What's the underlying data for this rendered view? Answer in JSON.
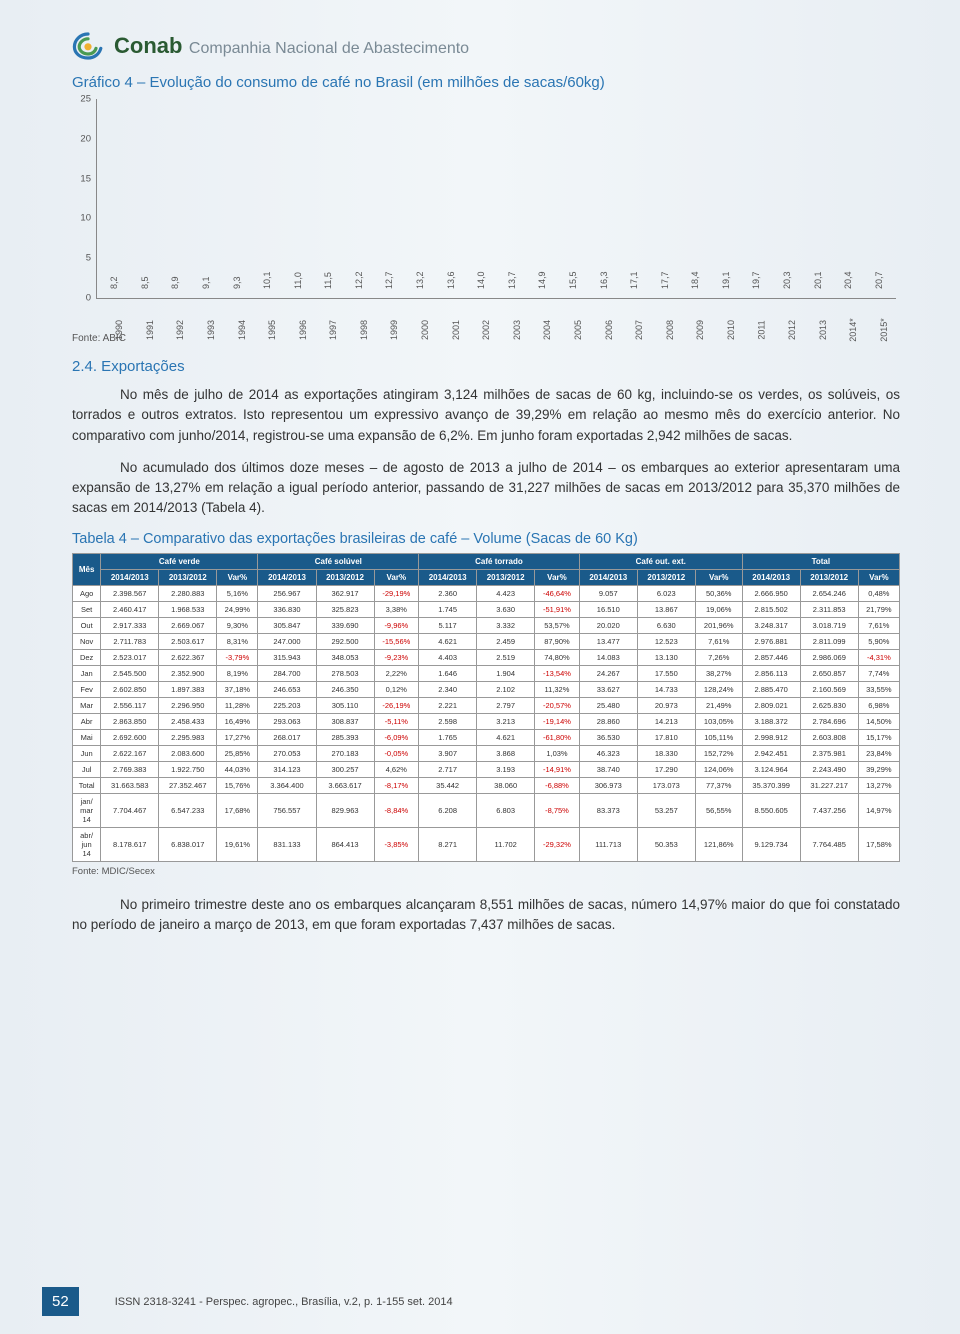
{
  "header": {
    "brand_main": "Conab",
    "brand_sub": "Companhia Nacional de Abastecimento",
    "logo_colors": {
      "outer": "#2a75b3",
      "mid": "#4a9a52",
      "inner": "#f0b030"
    }
  },
  "chart": {
    "title": "Gráfico 4 – Evolução do consumo de café no Brasil (em milhões de sacas/60kg)",
    "type": "bar",
    "ylim": [
      0,
      25
    ],
    "ytick_step": 5,
    "bar_color": "#9ac5c0",
    "axis_color": "#888888",
    "label_color": "#555555",
    "label_fontsize": 9,
    "background_color": "transparent",
    "categories": [
      "1990",
      "1991",
      "1992",
      "1993",
      "1994",
      "1995",
      "1996",
      "1997",
      "1998",
      "1999",
      "2000",
      "2001",
      "2002",
      "2003",
      "2004",
      "2005",
      "2006",
      "2007",
      "2008",
      "2009",
      "2010",
      "2011",
      "2012",
      "2013",
      "2014*",
      "2015*"
    ],
    "values": [
      8.2,
      8.5,
      8.9,
      9.1,
      9.3,
      10.1,
      11.0,
      11.5,
      12.2,
      12.7,
      13.2,
      13.6,
      14.0,
      13.7,
      14.9,
      15.5,
      16.3,
      17.1,
      17.7,
      18.4,
      19.1,
      19.7,
      20.3,
      20.1,
      20.4,
      20.7
    ],
    "value_labels": [
      "8,2",
      "8,5",
      "8,9",
      "9,1",
      "9,3",
      "10,1",
      "11,0",
      "11,5",
      "12,2",
      "12,7",
      "13,2",
      "13,6",
      "14,0",
      "13,7",
      "14,9",
      "15,5",
      "16,3",
      "17,1",
      "17,7",
      "18,4",
      "19,1",
      "19,7",
      "20,3",
      "20,1",
      "20,4",
      "20,7"
    ],
    "source": "Fonte: ABIC"
  },
  "section24": {
    "heading": "2.4. Exportações",
    "p1": "No mês de julho de 2014 as exportações atingiram 3,124 milhões de sacas de 60 kg, incluindo-se os verdes, os solúveis, os torrados e outros extratos. Isto representou um expressivo avanço de 39,29% em relação ao mesmo mês do exercício anterior. No comparativo com junho/2014, registrou-se uma expansão de 6,2%. Em junho foram exportadas 2,942 milhões de sacas.",
    "p2": "No acumulado dos últimos doze meses – de agosto de 2013 a julho de 2014 – os embarques ao exterior apresentaram uma expansão de 13,27% em relação a igual período anterior, passando de 31,227 milhões de sacas em 2013/2012 para 35,370 milhões de sacas em 2014/2013 (Tabela 4)."
  },
  "table": {
    "title": "Tabela 4 – Comparativo das exportações brasileiras de café – Volume (Sacas de 60 Kg)",
    "header_bg": "#1a5a8a",
    "header_fg": "#ffffff",
    "border_color": "#999999",
    "neg_color": "#cc0000",
    "group_headers": [
      "Mês",
      "Café verde",
      "Café solúvel",
      "Café torrado",
      "Café out. ext.",
      "Total"
    ],
    "sub_headers": [
      "2014/2013",
      "2013/2012",
      "Var%"
    ],
    "rows": [
      {
        "m": "Ago",
        "c": [
          [
            "2.398.567",
            "2.280.883",
            "5,16%"
          ],
          [
            "256.967",
            "362.917",
            "-29,19%"
          ],
          [
            "2.360",
            "4.423",
            "-46,64%"
          ],
          [
            "9.057",
            "6.023",
            "50,36%"
          ],
          [
            "2.666.950",
            "2.654.246",
            "0,48%"
          ]
        ]
      },
      {
        "m": "Set",
        "c": [
          [
            "2.460.417",
            "1.968.533",
            "24,99%"
          ],
          [
            "336.830",
            "325.823",
            "3,38%"
          ],
          [
            "1.745",
            "3.630",
            "-51,91%"
          ],
          [
            "16.510",
            "13.867",
            "19,06%"
          ],
          [
            "2.815.502",
            "2.311.853",
            "21,79%"
          ]
        ]
      },
      {
        "m": "Out",
        "c": [
          [
            "2.917.333",
            "2.669.067",
            "9,30%"
          ],
          [
            "305.847",
            "339.690",
            "-9,96%"
          ],
          [
            "5.117",
            "3.332",
            "53,57%"
          ],
          [
            "20.020",
            "6.630",
            "201,96%"
          ],
          [
            "3.248.317",
            "3.018.719",
            "7,61%"
          ]
        ]
      },
      {
        "m": "Nov",
        "c": [
          [
            "2.711.783",
            "2.503.617",
            "8,31%"
          ],
          [
            "247.000",
            "292.500",
            "-15,56%"
          ],
          [
            "4.621",
            "2.459",
            "87,90%"
          ],
          [
            "13.477",
            "12.523",
            "7,61%"
          ],
          [
            "2.976.881",
            "2.811.099",
            "5,90%"
          ]
        ]
      },
      {
        "m": "Dez",
        "c": [
          [
            "2.523.017",
            "2.622.367",
            "-3,79%"
          ],
          [
            "315.943",
            "348.053",
            "-9,23%"
          ],
          [
            "4.403",
            "2.519",
            "74,80%"
          ],
          [
            "14.083",
            "13.130",
            "7,26%"
          ],
          [
            "2.857.446",
            "2.986.069",
            "-4,31%"
          ]
        ]
      },
      {
        "m": "Jan",
        "c": [
          [
            "2.545.500",
            "2.352.900",
            "8,19%"
          ],
          [
            "284.700",
            "278.503",
            "2,22%"
          ],
          [
            "1.646",
            "1.904",
            "-13,54%"
          ],
          [
            "24.267",
            "17.550",
            "38,27%"
          ],
          [
            "2.856.113",
            "2.650.857",
            "7,74%"
          ]
        ]
      },
      {
        "m": "Fev",
        "c": [
          [
            "2.602.850",
            "1.897.383",
            "37,18%"
          ],
          [
            "246.653",
            "246.350",
            "0,12%"
          ],
          [
            "2.340",
            "2.102",
            "11,32%"
          ],
          [
            "33.627",
            "14.733",
            "128,24%"
          ],
          [
            "2.885.470",
            "2.160.569",
            "33,55%"
          ]
        ]
      },
      {
        "m": "Mar",
        "c": [
          [
            "2.556.117",
            "2.296.950",
            "11,28%"
          ],
          [
            "225.203",
            "305.110",
            "-26,19%"
          ],
          [
            "2.221",
            "2.797",
            "-20,57%"
          ],
          [
            "25.480",
            "20.973",
            "21,49%"
          ],
          [
            "2.809.021",
            "2.625.830",
            "6,98%"
          ]
        ]
      },
      {
        "m": "Abr",
        "c": [
          [
            "2.863.850",
            "2.458.433",
            "16,49%"
          ],
          [
            "293.063",
            "308.837",
            "-5,11%"
          ],
          [
            "2.598",
            "3.213",
            "-19,14%"
          ],
          [
            "28.860",
            "14.213",
            "103,05%"
          ],
          [
            "3.188.372",
            "2.784.696",
            "14,50%"
          ]
        ]
      },
      {
        "m": "Mai",
        "c": [
          [
            "2.692.600",
            "2.295.983",
            "17,27%"
          ],
          [
            "268.017",
            "285.393",
            "-6,09%"
          ],
          [
            "1.765",
            "4.621",
            "-61,80%"
          ],
          [
            "36.530",
            "17.810",
            "105,11%"
          ],
          [
            "2.998.912",
            "2.603.808",
            "15,17%"
          ]
        ]
      },
      {
        "m": "Jun",
        "c": [
          [
            "2.622.167",
            "2.083.600",
            "25,85%"
          ],
          [
            "270.053",
            "270.183",
            "-0,05%"
          ],
          [
            "3.907",
            "3.868",
            "1,03%"
          ],
          [
            "46.323",
            "18.330",
            "152,72%"
          ],
          [
            "2.942.451",
            "2.375.981",
            "23,84%"
          ]
        ]
      },
      {
        "m": "Jul",
        "c": [
          [
            "2.769.383",
            "1.922.750",
            "44,03%"
          ],
          [
            "314.123",
            "300.257",
            "4,62%"
          ],
          [
            "2.717",
            "3.193",
            "-14,91%"
          ],
          [
            "38.740",
            "17.290",
            "124,06%"
          ],
          [
            "3.124.964",
            "2.243.490",
            "39,29%"
          ]
        ]
      },
      {
        "m": "Total",
        "c": [
          [
            "31.663.583",
            "27.352.467",
            "15,76%"
          ],
          [
            "3.364.400",
            "3.663.617",
            "-8,17%"
          ],
          [
            "35.442",
            "38.060",
            "-6,88%"
          ],
          [
            "306.973",
            "173.073",
            "77,37%"
          ],
          [
            "35.370.399",
            "31.227.217",
            "13,27%"
          ]
        ]
      },
      {
        "m": "jan/\nmar\n14",
        "c": [
          [
            "7.704.467",
            "6.547.233",
            "17,68%"
          ],
          [
            "756.557",
            "829.963",
            "-8,84%"
          ],
          [
            "6.208",
            "6.803",
            "-8,75%"
          ],
          [
            "83.373",
            "53.257",
            "56,55%"
          ],
          [
            "8.550.605",
            "7.437.256",
            "14,97%"
          ]
        ]
      },
      {
        "m": "abr/\njun\n14",
        "c": [
          [
            "8.178.617",
            "6.838.017",
            "19,61%"
          ],
          [
            "831.133",
            "864.413",
            "-3,85%"
          ],
          [
            "8.271",
            "11.702",
            "-29,32%"
          ],
          [
            "111.713",
            "50.353",
            "121,86%"
          ],
          [
            "9.129.734",
            "7.764.485",
            "17,58%"
          ]
        ]
      }
    ],
    "source": "Fonte: MDIC/Secex"
  },
  "p3": "No primeiro trimestre deste ano os embarques alcançaram 8,551 milhões de sacas, número 14,97% maior do que foi constatado no período de janeiro a março de 2013, em que foram exportadas 7,437 milhões de sacas.",
  "footer": {
    "page_number": "52",
    "text": "ISSN 2318-3241  -  Perspec. agropec., Brasília, v.2, p. 1-155 set. 2014"
  }
}
